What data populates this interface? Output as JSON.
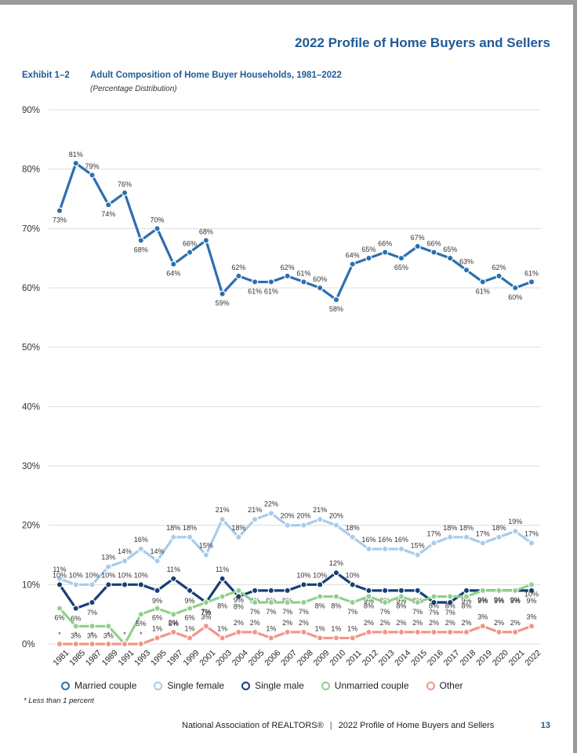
{
  "header": {
    "doc_title": "2022 Profile of Home Buyers and Sellers"
  },
  "exhibit": {
    "label": "Exhibit 1–2",
    "title": "Adult Composition of Home Buyer Households, 1981–2022",
    "subtitle": "(Percentage Distribution)"
  },
  "chart_data": {
    "type": "line",
    "title": "Adult Composition of Home Buyer Households, 1981–2022",
    "ylim": [
      0,
      90
    ],
    "yticks": [
      "0%",
      "10%",
      "20%",
      "30%",
      "40%",
      "50%",
      "60%",
      "70%",
      "80%",
      "90%"
    ],
    "categories": [
      "1981",
      "1985",
      "1987",
      "1989",
      "1991",
      "1993",
      "1995",
      "1997",
      "1999",
      "2001",
      "2003",
      "2004",
      "2005",
      "2006",
      "2007",
      "2008",
      "2009",
      "2010",
      "2011",
      "2012",
      "2013",
      "2014",
      "2015",
      "2016",
      "2017",
      "2018",
      "2019",
      "2020",
      "2021",
      "2022"
    ],
    "series": [
      {
        "name": "Married couple",
        "color": "#2a6fb0",
        "values": [
          73,
          81,
          79,
          74,
          76,
          68,
          70,
          64,
          66,
          68,
          59,
          62,
          61,
          61,
          62,
          61,
          60,
          58,
          64,
          65,
          66,
          65,
          67,
          66,
          65,
          63,
          61,
          62,
          60,
          61
        ],
        "labels": [
          "73%",
          "81%",
          "79%",
          "74%",
          "76%",
          "68%",
          "70%",
          "64%",
          "66%",
          "68%",
          "59%",
          "62%",
          "61%",
          "61%",
          "62%",
          "61%",
          "60%",
          "58%",
          "64%",
          "65%",
          "66%",
          "65%",
          "67%",
          "66%",
          "65%",
          "63%",
          "61%",
          "62%",
          "60%",
          "61%"
        ]
      },
      {
        "name": "Single female",
        "color": "#a9cbea",
        "values": [
          11,
          10,
          10,
          13,
          14,
          16,
          14,
          18,
          18,
          15,
          21,
          18,
          21,
          22,
          20,
          20,
          21,
          20,
          18,
          16,
          16,
          16,
          15,
          17,
          18,
          18,
          17,
          18,
          19,
          17
        ],
        "labels": [
          "11%",
          "10%",
          "10%",
          "13%",
          "14%",
          "16%",
          "14%",
          "18%",
          "18%",
          "15%",
          "21%",
          "18%",
          "21%",
          "22%",
          "20%",
          "20%",
          "21%",
          "20%",
          "18%",
          "16%",
          "16%",
          "16%",
          "15%",
          "17%",
          "18%",
          "18%",
          "17%",
          "18%",
          "19%",
          "17%"
        ]
      },
      {
        "name": "Single male",
        "color": "#163f74",
        "values": [
          10,
          6,
          7,
          10,
          10,
          10,
          9,
          11,
          9,
          7,
          11,
          8,
          9,
          9,
          9,
          10,
          10,
          12,
          10,
          9,
          9,
          9,
          9,
          7,
          7,
          9,
          9,
          9,
          9,
          9
        ],
        "labels": [
          "10%",
          "6%",
          "7%",
          "10%",
          "10%",
          "10%",
          "9%",
          "11%",
          "9%",
          "7%",
          "11%",
          "8%",
          "9%",
          "9%",
          "9%",
          "10%",
          "10%",
          "12%",
          "10%",
          "9%",
          "9%",
          "9%",
          "9%",
          "7%",
          "7%",
          "9%",
          "9%",
          "9%",
          "9%",
          "9%"
        ]
      },
      {
        "name": "Unmarried couple",
        "color": "#8fd18c",
        "values": [
          6,
          3,
          3,
          3,
          0,
          5,
          6,
          5,
          6,
          7,
          8,
          9,
          7,
          7,
          7,
          7,
          8,
          8,
          7,
          8,
          7,
          8,
          7,
          8,
          8,
          8,
          9,
          9,
          9,
          10
        ],
        "labels": [
          "6%",
          "3%",
          "3%",
          "3%",
          "",
          "5%",
          "6%",
          "5%",
          "6%",
          "7%",
          "8%",
          "9%",
          "7%",
          "7%",
          "7%",
          "7%",
          "8%",
          "8%",
          "7%",
          "8%",
          "7%",
          "8%",
          "7%",
          "8%",
          "8%",
          "8%",
          "9%",
          "9%",
          "9%",
          "10%"
        ]
      },
      {
        "name": "Other",
        "color": "#f0968a",
        "values": [
          0,
          0,
          0,
          0,
          0,
          0,
          1,
          2,
          1,
          3,
          1,
          2,
          2,
          1,
          2,
          2,
          1,
          1,
          1,
          2,
          2,
          2,
          2,
          2,
          2,
          2,
          3,
          2,
          2,
          3
        ],
        "labels": [
          "*",
          "*",
          "*",
          "*",
          "*",
          "*",
          "1%",
          "2%",
          "1%",
          "3%",
          "1%",
          "2%",
          "2%",
          "1%",
          "2%",
          "2%",
          "1%",
          "1%",
          "1%",
          "2%",
          "2%",
          "2%",
          "2%",
          "2%",
          "2%",
          "2%",
          "3%",
          "2%",
          "2%",
          "3%"
        ]
      }
    ]
  },
  "footnote": "* Less than 1 percent",
  "footer": {
    "org": "National Association of REALTORS®",
    "separator": "|",
    "doc": "2022 Profile of Home Buyers and Sellers",
    "page": "13"
  }
}
